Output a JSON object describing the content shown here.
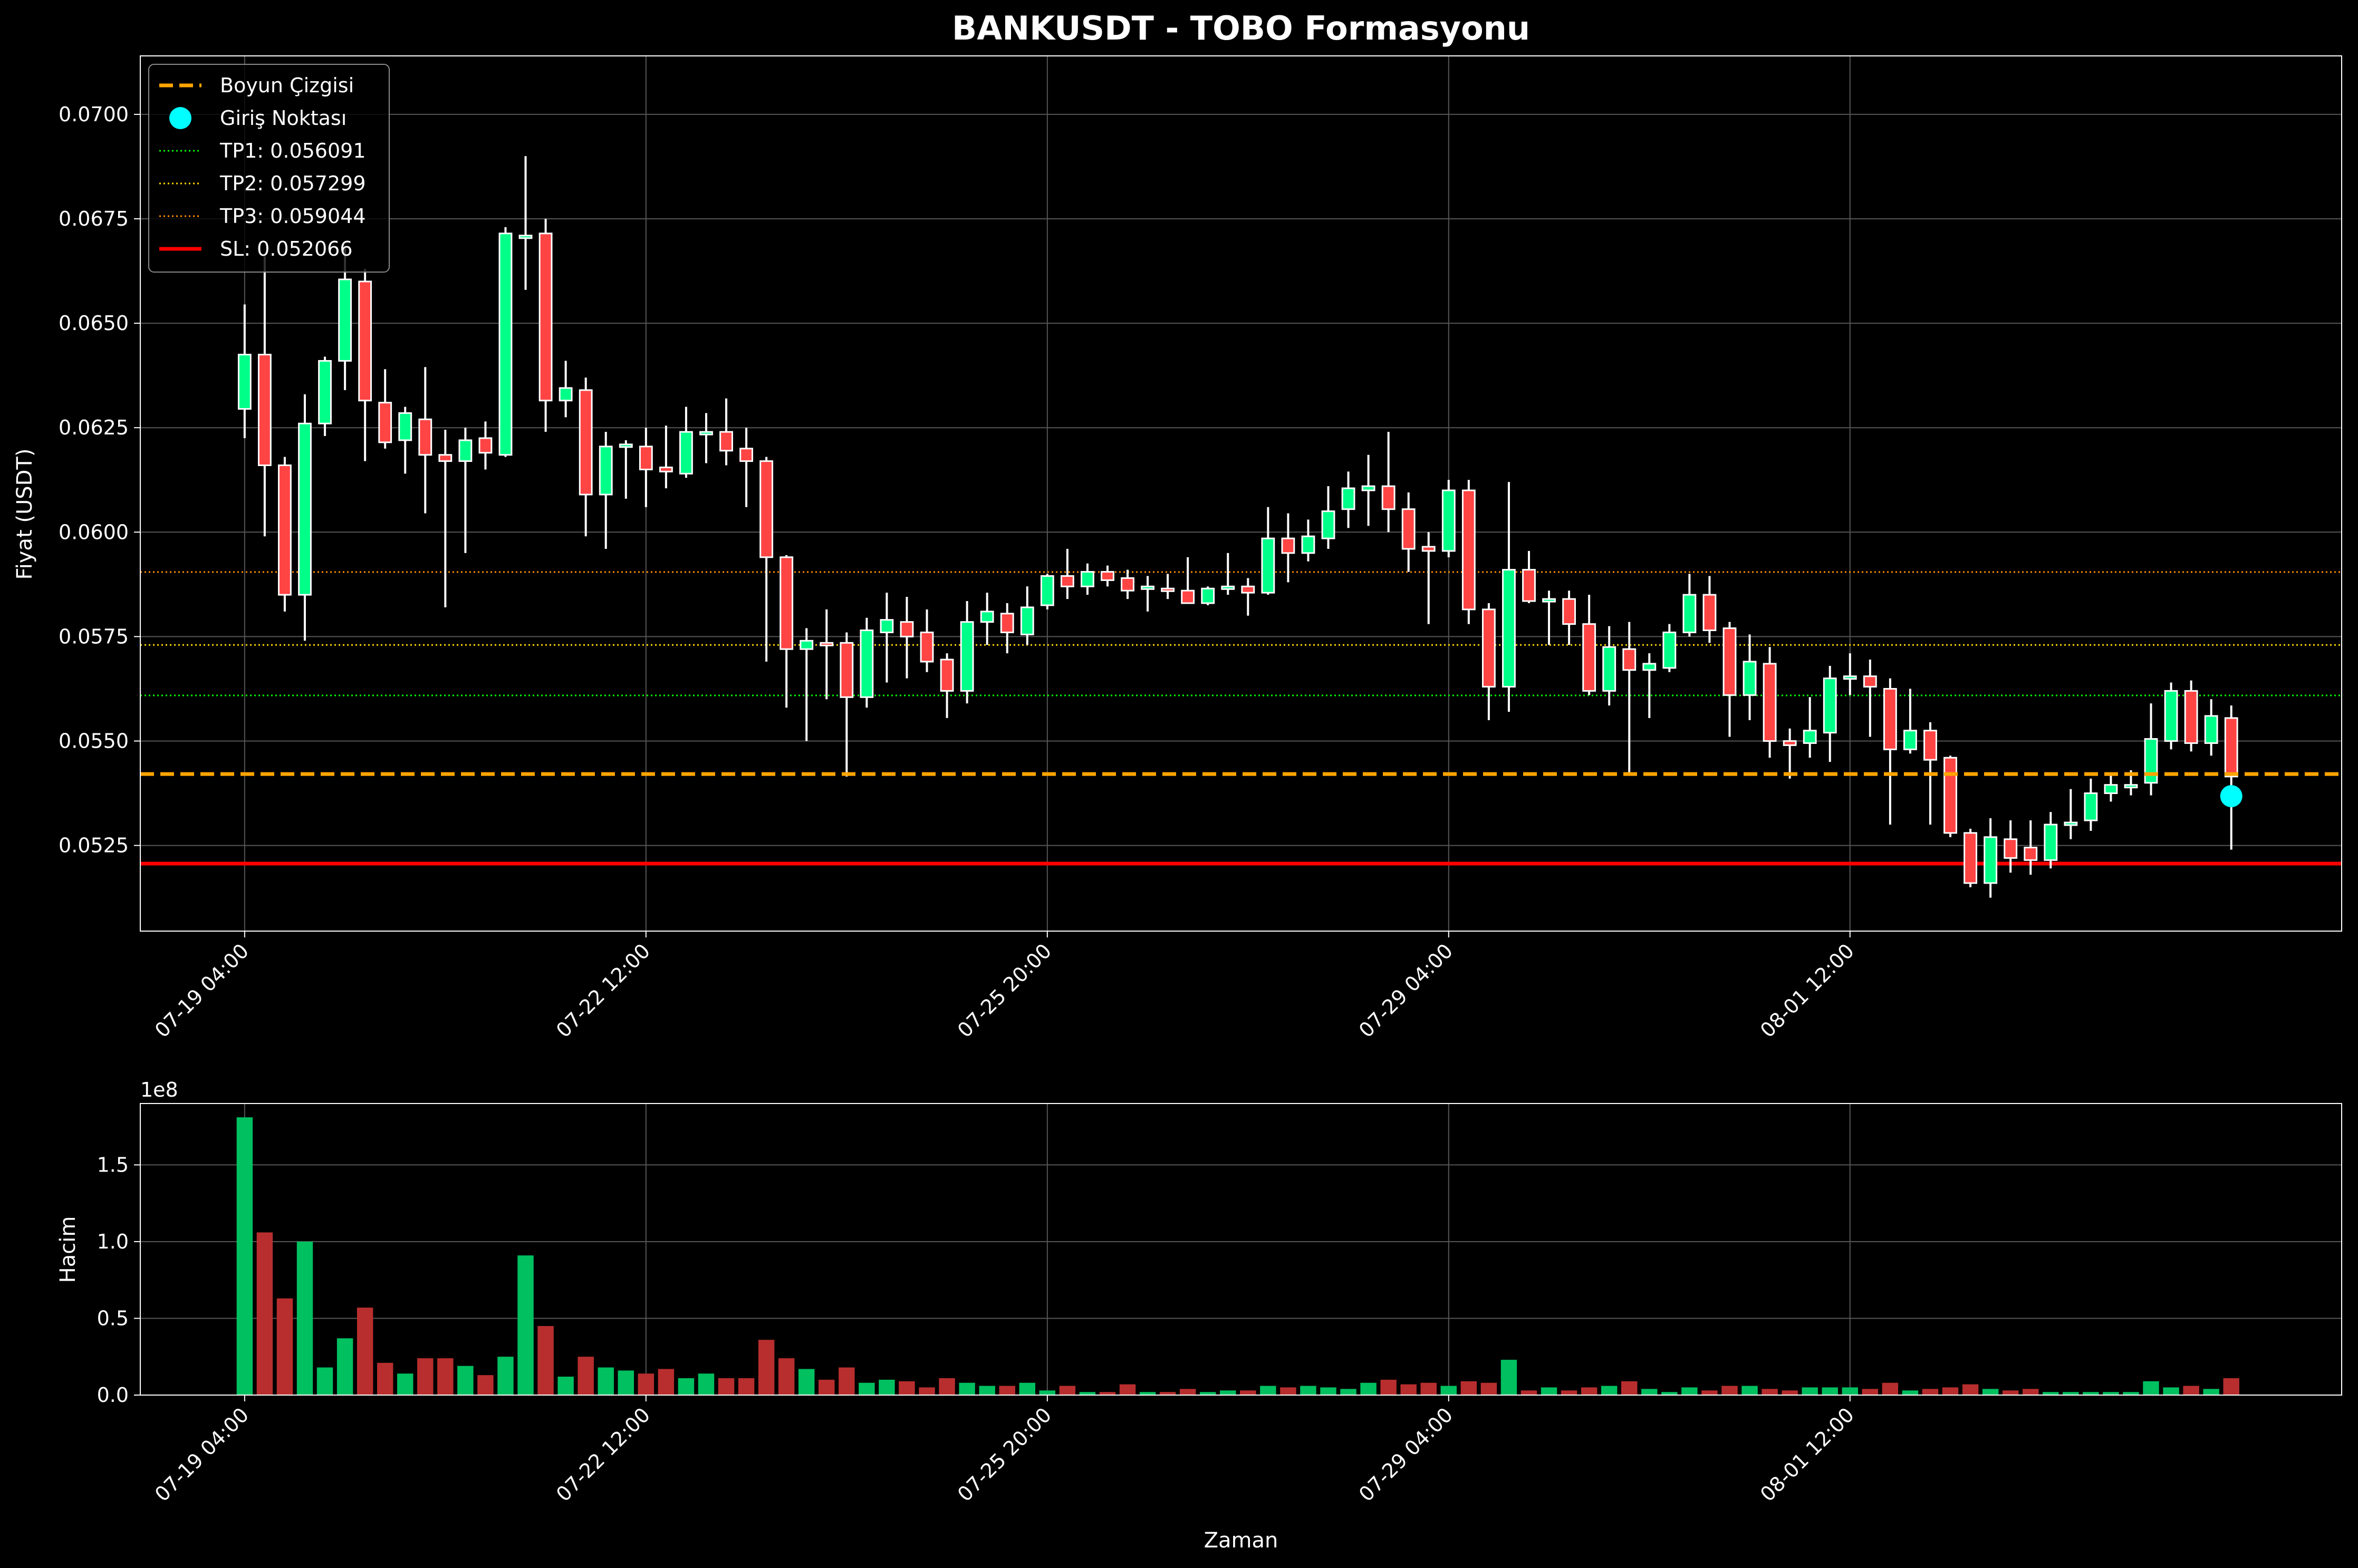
{
  "chart_data": {
    "type": "candlestick",
    "title": "BANKUSDT - TOBO Formasyonu",
    "price_panel": {
      "ylabel": "Fiyat (USDT)",
      "ylim": [
        0.05045,
        0.0714
      ],
      "yticks": [
        0.0525,
        0.055,
        0.0575,
        0.06,
        0.0625,
        0.065,
        0.0675,
        0.07
      ],
      "ytick_labels": [
        "0.0525",
        "0.0550",
        "0.0575",
        "0.0600",
        "0.0625",
        "0.0650",
        "0.0675",
        "0.0700"
      ],
      "grid": true
    },
    "volume_panel": {
      "ylabel": "Hacim",
      "xlabel": "Zaman",
      "scale_label": "1e8",
      "ylim": [
        0,
        1.9
      ],
      "yticks": [
        0.0,
        0.5,
        1.0,
        1.5
      ],
      "ytick_labels": [
        "0.0",
        "0.5",
        "1.0",
        "1.5"
      ],
      "grid": true
    },
    "x_axis": {
      "xlim": [
        -5.2,
        104.5
      ],
      "tick_positions": [
        0,
        20,
        40,
        60,
        80
      ],
      "tick_labels": [
        "07-19 04:00",
        "07-22 12:00",
        "07-25 20:00",
        "07-29 04:00",
        "08-01 12:00"
      ]
    },
    "colors": {
      "background": "#000000",
      "up_body": "#00ff88",
      "down_body": "#ff4444",
      "volume_up": "#00c060",
      "volume_down": "#b82e2e",
      "wick": "#ffffff",
      "neckline": "#ffa500",
      "entry": "#00ffff",
      "tp1": "#00ff00",
      "tp2": "#ffd700",
      "tp3": "#ff8c00",
      "sl": "#ff0000"
    },
    "legend": {
      "position": "upper-left",
      "entries": [
        {
          "label": "Boyun Çizgisi",
          "kind": "dashed",
          "color": "#ffa500"
        },
        {
          "label": "Giriş Noktası",
          "kind": "marker",
          "color": "#00ffff"
        },
        {
          "label": "TP1: 0.056091",
          "kind": "dotted",
          "color": "#00ff00"
        },
        {
          "label": "TP2: 0.057299",
          "kind": "dotted",
          "color": "#ffd700"
        },
        {
          "label": "TP3: 0.059044",
          "kind": "dotted",
          "color": "#ff8c00"
        },
        {
          "label": "SL: 0.052066",
          "kind": "solid",
          "color": "#ff0000"
        }
      ]
    },
    "levels": {
      "neckline": 0.05421,
      "tp1": 0.056091,
      "tp2": 0.057299,
      "tp3": 0.059044,
      "sl": 0.052066
    },
    "entry_point": {
      "index": 99,
      "price": 0.05368
    },
    "candles": [
      {
        "o": 0.06295,
        "h": 0.06545,
        "l": 0.06225,
        "c": 0.06425,
        "v": 1.81
      },
      {
        "o": 0.06425,
        "h": 0.0666,
        "l": 0.0599,
        "c": 0.0616,
        "v": 1.06
      },
      {
        "o": 0.0616,
        "h": 0.0618,
        "l": 0.0581,
        "c": 0.0585,
        "v": 0.63
      },
      {
        "o": 0.0585,
        "h": 0.0633,
        "l": 0.0574,
        "c": 0.0626,
        "v": 1.0
      },
      {
        "o": 0.0626,
        "h": 0.0642,
        "l": 0.0623,
        "c": 0.0641,
        "v": 0.18
      },
      {
        "o": 0.0641,
        "h": 0.0668,
        "l": 0.0634,
        "c": 0.06605,
        "v": 0.37
      },
      {
        "o": 0.066,
        "h": 0.0663,
        "l": 0.0617,
        "c": 0.06315,
        "v": 0.57
      },
      {
        "o": 0.0631,
        "h": 0.0639,
        "l": 0.062,
        "c": 0.06215,
        "v": 0.21
      },
      {
        "o": 0.0622,
        "h": 0.063,
        "l": 0.0614,
        "c": 0.06285,
        "v": 0.14
      },
      {
        "o": 0.0627,
        "h": 0.06395,
        "l": 0.06045,
        "c": 0.06185,
        "v": 0.24
      },
      {
        "o": 0.06185,
        "h": 0.06245,
        "l": 0.0582,
        "c": 0.0617,
        "v": 0.24
      },
      {
        "o": 0.0617,
        "h": 0.0625,
        "l": 0.0595,
        "c": 0.0622,
        "v": 0.19
      },
      {
        "o": 0.06225,
        "h": 0.06265,
        "l": 0.0615,
        "c": 0.0619,
        "v": 0.13
      },
      {
        "o": 0.06185,
        "h": 0.0673,
        "l": 0.0618,
        "c": 0.06715,
        "v": 0.25
      },
      {
        "o": 0.0671,
        "h": 0.069,
        "l": 0.0658,
        "c": 0.0671,
        "v": 0.91
      },
      {
        "o": 0.06715,
        "h": 0.0675,
        "l": 0.0624,
        "c": 0.06315,
        "v": 0.45
      },
      {
        "o": 0.06315,
        "h": 0.0641,
        "l": 0.06275,
        "c": 0.06345,
        "v": 0.12
      },
      {
        "o": 0.0634,
        "h": 0.0637,
        "l": 0.0599,
        "c": 0.0609,
        "v": 0.25
      },
      {
        "o": 0.0609,
        "h": 0.0624,
        "l": 0.0596,
        "c": 0.06205,
        "v": 0.18
      },
      {
        "o": 0.06205,
        "h": 0.0622,
        "l": 0.0608,
        "c": 0.0621,
        "v": 0.16
      },
      {
        "o": 0.06205,
        "h": 0.0625,
        "l": 0.0606,
        "c": 0.0615,
        "v": 0.14
      },
      {
        "o": 0.06155,
        "h": 0.06255,
        "l": 0.06105,
        "c": 0.06145,
        "v": 0.17
      },
      {
        "o": 0.0614,
        "h": 0.063,
        "l": 0.0613,
        "c": 0.0624,
        "v": 0.11
      },
      {
        "o": 0.0624,
        "h": 0.06285,
        "l": 0.06165,
        "c": 0.0624,
        "v": 0.14
      },
      {
        "o": 0.0624,
        "h": 0.0632,
        "l": 0.0616,
        "c": 0.06195,
        "v": 0.11
      },
      {
        "o": 0.062,
        "h": 0.0625,
        "l": 0.0606,
        "c": 0.0617,
        "v": 0.11
      },
      {
        "o": 0.0617,
        "h": 0.0618,
        "l": 0.0569,
        "c": 0.0594,
        "v": 0.36
      },
      {
        "o": 0.0594,
        "h": 0.05945,
        "l": 0.0558,
        "c": 0.0572,
        "v": 0.24
      },
      {
        "o": 0.0572,
        "h": 0.0577,
        "l": 0.055,
        "c": 0.0574,
        "v": 0.17
      },
      {
        "o": 0.05735,
        "h": 0.05815,
        "l": 0.056,
        "c": 0.0573,
        "v": 0.1
      },
      {
        "o": 0.05735,
        "h": 0.0576,
        "l": 0.05415,
        "c": 0.05605,
        "v": 0.18
      },
      {
        "o": 0.05605,
        "h": 0.05795,
        "l": 0.0558,
        "c": 0.05765,
        "v": 0.08
      },
      {
        "o": 0.0576,
        "h": 0.05855,
        "l": 0.0564,
        "c": 0.0579,
        "v": 0.1
      },
      {
        "o": 0.05785,
        "h": 0.05845,
        "l": 0.0565,
        "c": 0.0575,
        "v": 0.09
      },
      {
        "o": 0.0576,
        "h": 0.05815,
        "l": 0.05665,
        "c": 0.0569,
        "v": 0.05
      },
      {
        "o": 0.05695,
        "h": 0.0571,
        "l": 0.05555,
        "c": 0.0562,
        "v": 0.11
      },
      {
        "o": 0.0562,
        "h": 0.05835,
        "l": 0.0559,
        "c": 0.05785,
        "v": 0.08
      },
      {
        "o": 0.05785,
        "h": 0.05855,
        "l": 0.0573,
        "c": 0.0581,
        "v": 0.06
      },
      {
        "o": 0.05805,
        "h": 0.0583,
        "l": 0.0571,
        "c": 0.0576,
        "v": 0.06
      },
      {
        "o": 0.05755,
        "h": 0.0587,
        "l": 0.0573,
        "c": 0.0582,
        "v": 0.08
      },
      {
        "o": 0.05825,
        "h": 0.059,
        "l": 0.05815,
        "c": 0.05895,
        "v": 0.03
      },
      {
        "o": 0.05895,
        "h": 0.0596,
        "l": 0.0584,
        "c": 0.0587,
        "v": 0.06
      },
      {
        "o": 0.0587,
        "h": 0.05925,
        "l": 0.0585,
        "c": 0.05905,
        "v": 0.02
      },
      {
        "o": 0.05905,
        "h": 0.0592,
        "l": 0.0587,
        "c": 0.05885,
        "v": 0.02
      },
      {
        "o": 0.0589,
        "h": 0.0591,
        "l": 0.0584,
        "c": 0.0586,
        "v": 0.07
      },
      {
        "o": 0.05865,
        "h": 0.05895,
        "l": 0.0581,
        "c": 0.0587,
        "v": 0.02
      },
      {
        "o": 0.05865,
        "h": 0.059,
        "l": 0.0584,
        "c": 0.0586,
        "v": 0.02
      },
      {
        "o": 0.0586,
        "h": 0.0594,
        "l": 0.0583,
        "c": 0.0583,
        "v": 0.04
      },
      {
        "o": 0.0583,
        "h": 0.0587,
        "l": 0.05825,
        "c": 0.05865,
        "v": 0.02
      },
      {
        "o": 0.05865,
        "h": 0.0595,
        "l": 0.0585,
        "c": 0.0587,
        "v": 0.03
      },
      {
        "o": 0.0587,
        "h": 0.0589,
        "l": 0.058,
        "c": 0.05855,
        "v": 0.03
      },
      {
        "o": 0.05855,
        "h": 0.0606,
        "l": 0.0585,
        "c": 0.05985,
        "v": 0.06
      },
      {
        "o": 0.05985,
        "h": 0.06045,
        "l": 0.0588,
        "c": 0.0595,
        "v": 0.05
      },
      {
        "o": 0.0595,
        "h": 0.0603,
        "l": 0.0593,
        "c": 0.0599,
        "v": 0.06
      },
      {
        "o": 0.05985,
        "h": 0.0611,
        "l": 0.0596,
        "c": 0.0605,
        "v": 0.05
      },
      {
        "o": 0.06055,
        "h": 0.06145,
        "l": 0.0601,
        "c": 0.06105,
        "v": 0.04
      },
      {
        "o": 0.061,
        "h": 0.06185,
        "l": 0.06015,
        "c": 0.0611,
        "v": 0.08
      },
      {
        "o": 0.0611,
        "h": 0.0624,
        "l": 0.06,
        "c": 0.06055,
        "v": 0.1
      },
      {
        "o": 0.06055,
        "h": 0.06095,
        "l": 0.05905,
        "c": 0.0596,
        "v": 0.07
      },
      {
        "o": 0.05965,
        "h": 0.06,
        "l": 0.0578,
        "c": 0.05955,
        "v": 0.08
      },
      {
        "o": 0.05955,
        "h": 0.06125,
        "l": 0.0594,
        "c": 0.061,
        "v": 0.06
      },
      {
        "o": 0.061,
        "h": 0.06125,
        "l": 0.0578,
        "c": 0.05815,
        "v": 0.09
      },
      {
        "o": 0.05815,
        "h": 0.0583,
        "l": 0.0555,
        "c": 0.0563,
        "v": 0.08
      },
      {
        "o": 0.0563,
        "h": 0.0612,
        "l": 0.0557,
        "c": 0.0591,
        "v": 0.23
      },
      {
        "o": 0.0591,
        "h": 0.05955,
        "l": 0.0583,
        "c": 0.05835,
        "v": 0.03
      },
      {
        "o": 0.05835,
        "h": 0.0586,
        "l": 0.0573,
        "c": 0.0584,
        "v": 0.05
      },
      {
        "o": 0.0584,
        "h": 0.0586,
        "l": 0.0573,
        "c": 0.0578,
        "v": 0.03
      },
      {
        "o": 0.0578,
        "h": 0.0585,
        "l": 0.0561,
        "c": 0.0562,
        "v": 0.05
      },
      {
        "o": 0.0562,
        "h": 0.05775,
        "l": 0.05585,
        "c": 0.05725,
        "v": 0.06
      },
      {
        "o": 0.0572,
        "h": 0.05785,
        "l": 0.0542,
        "c": 0.0567,
        "v": 0.09
      },
      {
        "o": 0.0567,
        "h": 0.0571,
        "l": 0.05555,
        "c": 0.05685,
        "v": 0.04
      },
      {
        "o": 0.05675,
        "h": 0.0578,
        "l": 0.05665,
        "c": 0.0576,
        "v": 0.02
      },
      {
        "o": 0.0576,
        "h": 0.059,
        "l": 0.0575,
        "c": 0.0585,
        "v": 0.05
      },
      {
        "o": 0.0585,
        "h": 0.05895,
        "l": 0.05735,
        "c": 0.05765,
        "v": 0.03
      },
      {
        "o": 0.0577,
        "h": 0.05785,
        "l": 0.0551,
        "c": 0.0561,
        "v": 0.06
      },
      {
        "o": 0.0561,
        "h": 0.05755,
        "l": 0.0555,
        "c": 0.0569,
        "v": 0.06
      },
      {
        "o": 0.05685,
        "h": 0.05725,
        "l": 0.0546,
        "c": 0.055,
        "v": 0.04
      },
      {
        "o": 0.055,
        "h": 0.0553,
        "l": 0.0541,
        "c": 0.0549,
        "v": 0.03
      },
      {
        "o": 0.05495,
        "h": 0.05605,
        "l": 0.0546,
        "c": 0.05525,
        "v": 0.05
      },
      {
        "o": 0.0552,
        "h": 0.0568,
        "l": 0.0545,
        "c": 0.0565,
        "v": 0.05
      },
      {
        "o": 0.0565,
        "h": 0.0571,
        "l": 0.0561,
        "c": 0.05655,
        "v": 0.05
      },
      {
        "o": 0.05655,
        "h": 0.05695,
        "l": 0.0551,
        "c": 0.0563,
        "v": 0.04
      },
      {
        "o": 0.05625,
        "h": 0.0565,
        "l": 0.053,
        "c": 0.0548,
        "v": 0.08
      },
      {
        "o": 0.0548,
        "h": 0.05625,
        "l": 0.0547,
        "c": 0.05525,
        "v": 0.03
      },
      {
        "o": 0.05525,
        "h": 0.05545,
        "l": 0.053,
        "c": 0.05455,
        "v": 0.04
      },
      {
        "o": 0.0546,
        "h": 0.05465,
        "l": 0.0527,
        "c": 0.0528,
        "v": 0.05
      },
      {
        "o": 0.0528,
        "h": 0.0529,
        "l": 0.0515,
        "c": 0.0516,
        "v": 0.07
      },
      {
        "o": 0.0516,
        "h": 0.05315,
        "l": 0.05125,
        "c": 0.0527,
        "v": 0.04
      },
      {
        "o": 0.05265,
        "h": 0.0531,
        "l": 0.05185,
        "c": 0.0522,
        "v": 0.03
      },
      {
        "o": 0.05245,
        "h": 0.0531,
        "l": 0.0518,
        "c": 0.05215,
        "v": 0.04
      },
      {
        "o": 0.05215,
        "h": 0.0533,
        "l": 0.05195,
        "c": 0.053,
        "v": 0.02
      },
      {
        "o": 0.05305,
        "h": 0.05385,
        "l": 0.05265,
        "c": 0.05305,
        "v": 0.02
      },
      {
        "o": 0.0531,
        "h": 0.0541,
        "l": 0.05285,
        "c": 0.05375,
        "v": 0.02
      },
      {
        "o": 0.05375,
        "h": 0.05425,
        "l": 0.05355,
        "c": 0.05395,
        "v": 0.02
      },
      {
        "o": 0.0539,
        "h": 0.0543,
        "l": 0.0537,
        "c": 0.05395,
        "v": 0.02
      },
      {
        "o": 0.054,
        "h": 0.0559,
        "l": 0.0537,
        "c": 0.05505,
        "v": 0.09
      },
      {
        "o": 0.055,
        "h": 0.0564,
        "l": 0.0548,
        "c": 0.0562,
        "v": 0.05
      },
      {
        "o": 0.0562,
        "h": 0.05645,
        "l": 0.05475,
        "c": 0.05495,
        "v": 0.06
      },
      {
        "o": 0.05495,
        "h": 0.056,
        "l": 0.05465,
        "c": 0.0556,
        "v": 0.04
      },
      {
        "o": 0.05555,
        "h": 0.05585,
        "l": 0.0524,
        "c": 0.05415,
        "v": 0.11
      }
    ]
  }
}
